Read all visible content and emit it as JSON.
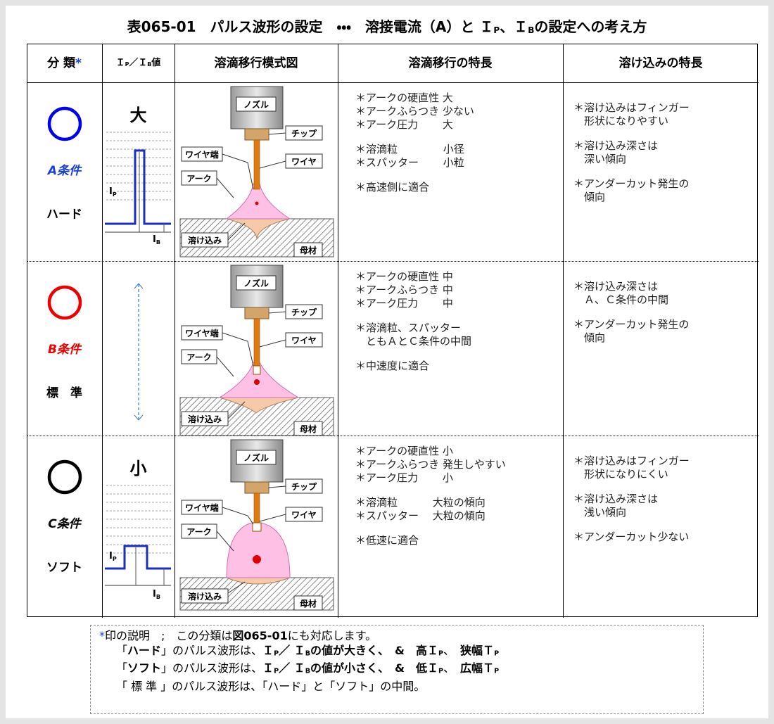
{
  "header": {
    "title": [
      "表065-01　パルス波形の設定　・・・　溶接電流（A）と Ｉ",
      "P",
      "、Ｉ",
      "B",
      "の設定への考え方"
    ]
  },
  "table": {
    "columns": {
      "classification": [
        "分 類",
        "*"
      ],
      "ratio": [
        "Ｉ",
        "P",
        "／Ｉ",
        "B",
        "値"
      ],
      "diagram": "溶滴移行模式図",
      "transfer": "溶滴移行の特長",
      "penetration": "溶け込みの特長"
    },
    "diagram_labels": {
      "nozzle": "ノズル",
      "tip": "チップ",
      "wire_end": "ワイヤ端",
      "wire": "ワイヤ",
      "arc": "アーク",
      "penetration": "溶け込み",
      "base": "母材"
    },
    "waveform_labels": {
      "ip": [
        "I",
        "P"
      ],
      "ib": [
        "I",
        "B"
      ]
    },
    "rows": [
      {
        "circle_color": "#0000ee",
        "condition": "A条件",
        "condition_color": "#1a3fd6",
        "type": "ハード",
        "level": "大",
        "transfer": [
          [
            "＊アークの硬直性 大",
            "＊アークふらつき 少ない",
            "＊アーク圧力　　 大"
          ],
          [
            "＊溶滴粒　　　　 小径",
            "＊スパッター　　 小粒"
          ],
          [
            "＊高速側に適合"
          ]
        ],
        "penetration": [
          [
            "＊溶け込みはフィンガー",
            "　形状になりやすい"
          ],
          [
            "＊溶け込み深さは",
            "　深い傾向"
          ],
          [
            "＊アンダーカット発生の",
            "　傾向"
          ]
        ]
      },
      {
        "circle_color": "#ee0000",
        "condition": "B条件",
        "condition_color": "#ee0000",
        "type": "標　準",
        "transfer": [
          [
            "＊アークの硬直性 中",
            "＊アークふらつき 中",
            "＊アーク圧力　　 中"
          ],
          [
            "＊溶滴粒、スパッター",
            "　ともＡとＣ条件の中間"
          ],
          [
            "＊中速度に適合"
          ]
        ],
        "penetration": [
          [
            "＊溶け込み深さは",
            "　Ａ、Ｃ条件の中間"
          ],
          [
            "＊アンダーカット発生の",
            "　傾向"
          ]
        ]
      },
      {
        "circle_color": "#000000",
        "condition": "C条件",
        "condition_color": "#000000",
        "type": "ソフト",
        "level": "小",
        "transfer": [
          [
            "＊アークの硬直性 小",
            "＊アークふらつき 発生しやすい",
            "＊アーク圧力　　 小"
          ],
          [
            "＊溶滴粒　　　 大粒の傾向",
            "＊スパッター　 大粒の傾向"
          ],
          [
            "＊低速に適合"
          ]
        ],
        "penetration": [
          [
            "＊溶け込みはフィンガー",
            "　形状になりにくい"
          ],
          [
            "＊溶け込み深さは",
            "　浅い傾向"
          ],
          [
            "＊アンダーカット少ない"
          ]
        ]
      }
    ]
  },
  "note": {
    "lines": [
      [
        "*",
        "印の説明　;　この分類は",
        "図065-01",
        "にも対応します。"
      ],
      [
        "「",
        "ハード",
        "」のパルス波形は、",
        "Ｉ",
        "P",
        "／ Ｉ",
        "B",
        "の値が大きく、",
        "　&　高Ｉ",
        "P",
        "、　",
        "狭幅Ｔ",
        "P"
      ],
      [
        "「",
        "ソフト",
        "」のパルス波形は、",
        "Ｉ",
        "P",
        "／ Ｉ",
        "B",
        "の値が小さく、",
        "　&　低Ｉ",
        "P",
        "、　",
        "広幅Ｔ",
        "P"
      ],
      [
        "「 標 準 」のパルス波形は、「ハード」と「ソフト」の中間。"
      ]
    ]
  }
}
